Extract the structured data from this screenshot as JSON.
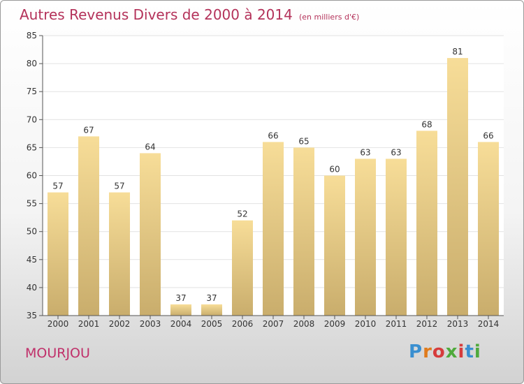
{
  "chart_data": {
    "type": "bar",
    "title": "Autres Revenus Divers de 2000 à 2014",
    "subtitle": "(en milliers d'€)",
    "categories": [
      "2000",
      "2001",
      "2002",
      "2003",
      "2004",
      "2005",
      "2006",
      "2007",
      "2008",
      "2009",
      "2010",
      "2011",
      "2012",
      "2013",
      "2014"
    ],
    "values": [
      57,
      67,
      57,
      64,
      37,
      37,
      52,
      66,
      65,
      60,
      63,
      63,
      68,
      81,
      66
    ],
    "ylim": [
      35,
      85
    ],
    "yticks": [
      35,
      40,
      45,
      50,
      55,
      60,
      65,
      70,
      75,
      80,
      85
    ],
    "grid": true,
    "colors": {
      "bar_light": "#f7dd98",
      "bar_dark": "#c9ad6c",
      "grid": "#e2e2e2",
      "axis": "#555555",
      "text": "#333333",
      "title": "#b4325a"
    }
  },
  "commune": "MOURJOU",
  "logo": "Proxiti"
}
